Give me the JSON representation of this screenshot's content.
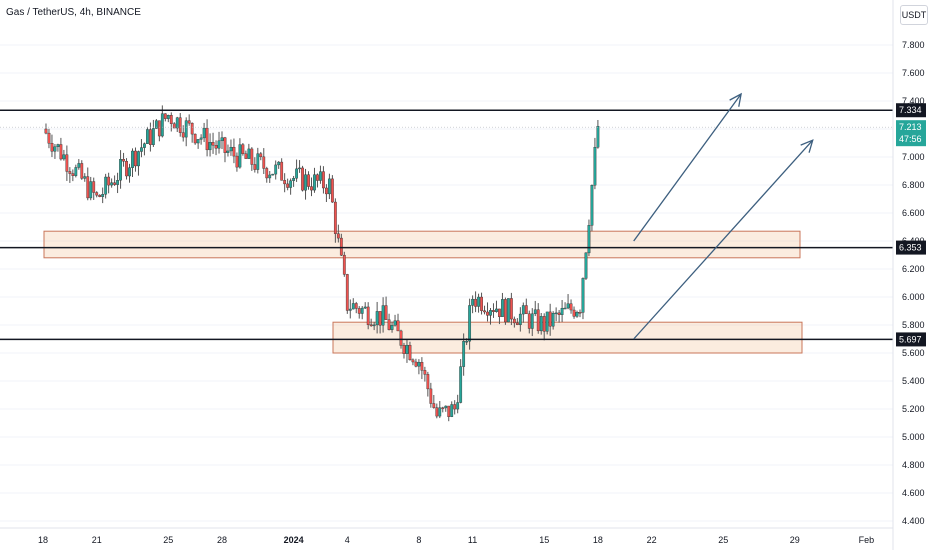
{
  "header": {
    "title": "Gas / TetherUS, 4h, BINANCE",
    "currency": "USDT"
  },
  "chart_data": {
    "type": "candlestick",
    "symbol": "Gas / TetherUS",
    "interval": "4h",
    "exchange": "BINANCE",
    "ylim": [
      4.4,
      8.0
    ],
    "y_ticks": [
      "7.800",
      "7.600",
      "7.400",
      "7.200",
      "7.000",
      "6.800",
      "6.600",
      "6.400",
      "6.200",
      "6.000",
      "5.800",
      "5.600",
      "5.400",
      "5.200",
      "5.000",
      "4.800",
      "4.600",
      "4.400"
    ],
    "x_ticks": [
      "18",
      "21",
      "25",
      "28",
      "2024",
      "4",
      "8",
      "11",
      "15",
      "18",
      "22",
      "25",
      "29",
      "Feb"
    ],
    "horizontal_levels": [
      {
        "label": "7.334",
        "value": 7.334
      },
      {
        "label": "6.353",
        "value": 6.353
      },
      {
        "label": "5.697",
        "value": 5.697
      }
    ],
    "last_price": {
      "value": "7.213",
      "countdown": "47:56"
    },
    "zones": [
      {
        "from": 6.28,
        "to": 6.47
      },
      {
        "from": 5.6,
        "to": 5.82
      }
    ],
    "anchors": [
      {
        "date": "Dec 18",
        "price": 7.2
      },
      {
        "date": "Dec 21",
        "price": 6.7
      },
      {
        "date": "Dec 25",
        "price": 7.3
      },
      {
        "date": "Dec 28",
        "price": 7.05
      },
      {
        "date": "Jan 1",
        "price": 6.85
      },
      {
        "date": "Jan 3",
        "price": 6.8
      },
      {
        "date": "Jan 4",
        "price": 5.95
      },
      {
        "date": "Jan 6",
        "price": 5.85
      },
      {
        "date": "Jan 8",
        "price": 5.55
      },
      {
        "date": "Jan 9",
        "price": 5.15
      },
      {
        "date": "Jan 10",
        "price": 5.2
      },
      {
        "date": "Jan 11",
        "price": 6.0
      },
      {
        "date": "Jan 15",
        "price": 5.8
      },
      {
        "date": "Jan 17",
        "price": 5.95
      },
      {
        "date": "Jan 18",
        "price": 7.22
      }
    ],
    "arrows": [
      {
        "from": {
          "date": "Jan 20",
          "price": 6.4
        },
        "to": {
          "date": "Jan 26",
          "price": 7.45
        }
      },
      {
        "from": {
          "date": "Jan 20",
          "price": 5.7
        },
        "to": {
          "date": "Jan 30",
          "price": 7.12
        }
      }
    ]
  }
}
